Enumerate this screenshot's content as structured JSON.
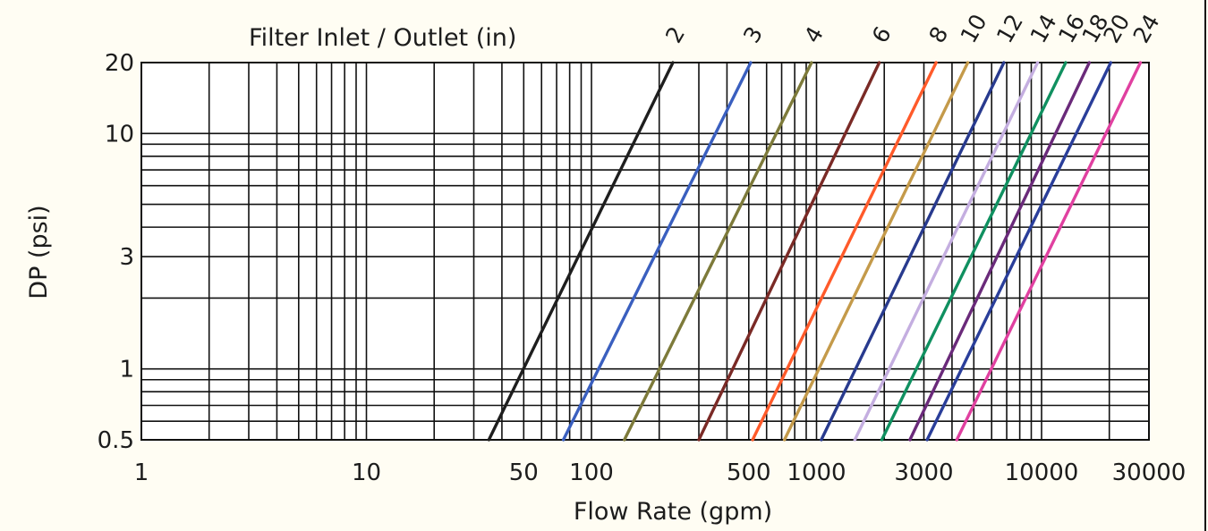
{
  "chart_data": {
    "type": "line",
    "x_scale": "log",
    "y_scale": "log",
    "title": "Filter Inlet / Outlet (in)",
    "xlabel": "Flow Rate (gpm)",
    "ylabel": "DP (psi)",
    "xlim": [
      1,
      30000
    ],
    "ylim": [
      0.5,
      20
    ],
    "x_ticks": [
      {
        "value": 1,
        "label": "1"
      },
      {
        "value": 10,
        "label": "10"
      },
      {
        "value": 50,
        "label": "50"
      },
      {
        "value": 100,
        "label": "100"
      },
      {
        "value": 500,
        "label": "500"
      },
      {
        "value": 1000,
        "label": "1000"
      },
      {
        "value": 3000,
        "label": "3000"
      },
      {
        "value": 10000,
        "label": "10000"
      },
      {
        "value": 30000,
        "label": "30000"
      }
    ],
    "y_ticks": [
      {
        "value": 0.5,
        "label": "0.5"
      },
      {
        "value": 1,
        "label": "1"
      },
      {
        "value": 3,
        "label": "3"
      },
      {
        "value": 10,
        "label": "10"
      },
      {
        "value": 20,
        "label": "20"
      }
    ],
    "x_gridlines": [
      1,
      2,
      3,
      4,
      5,
      6,
      7,
      8,
      9,
      10,
      20,
      30,
      40,
      50,
      60,
      70,
      80,
      90,
      100,
      200,
      300,
      400,
      500,
      600,
      700,
      800,
      900,
      1000,
      2000,
      3000,
      4000,
      5000,
      6000,
      7000,
      8000,
      9000,
      10000,
      20000,
      30000
    ],
    "y_gridlines": [
      0.5,
      0.6,
      0.7,
      0.8,
      0.9,
      1,
      2,
      3,
      4,
      5,
      6,
      7,
      8,
      9,
      10,
      20
    ],
    "grid": true,
    "series": [
      {
        "name": "2",
        "color": "#1e1e1e",
        "x": [
          35,
          230
        ],
        "y": [
          0.5,
          20
        ]
      },
      {
        "name": "3",
        "color": "#3a5fbf",
        "x": [
          75,
          510
        ],
        "y": [
          0.5,
          20
        ]
      },
      {
        "name": "4",
        "color": "#7d7a3a",
        "x": [
          140,
          950
        ],
        "y": [
          0.5,
          20
        ]
      },
      {
        "name": "6",
        "color": "#7a2a26",
        "x": [
          300,
          1900
        ],
        "y": [
          0.5,
          20
        ]
      },
      {
        "name": "8",
        "color": "#ff5a2a",
        "x": [
          520,
          3400
        ],
        "y": [
          0.5,
          20
        ]
      },
      {
        "name": "10",
        "color": "#c49a4a",
        "x": [
          720,
          4700
        ],
        "y": [
          0.5,
          20
        ]
      },
      {
        "name": "12",
        "color": "#283a8e",
        "x": [
          1050,
          6800
        ],
        "y": [
          0.5,
          20
        ]
      },
      {
        "name": "14",
        "color": "#c4aee0",
        "x": [
          1480,
          9600
        ],
        "y": [
          0.5,
          20
        ]
      },
      {
        "name": "16",
        "color": "#109060",
        "x": [
          1950,
          12800
        ],
        "y": [
          0.5,
          20
        ]
      },
      {
        "name": "18",
        "color": "#6a2a7a",
        "x": [
          2600,
          16300
        ],
        "y": [
          0.5,
          20
        ]
      },
      {
        "name": "20",
        "color": "#2a3e9a",
        "x": [
          3100,
          20300
        ],
        "y": [
          0.5,
          20
        ]
      },
      {
        "name": "24",
        "color": "#e040a0",
        "x": [
          4200,
          27500
        ],
        "y": [
          0.5,
          20
        ]
      }
    ]
  }
}
